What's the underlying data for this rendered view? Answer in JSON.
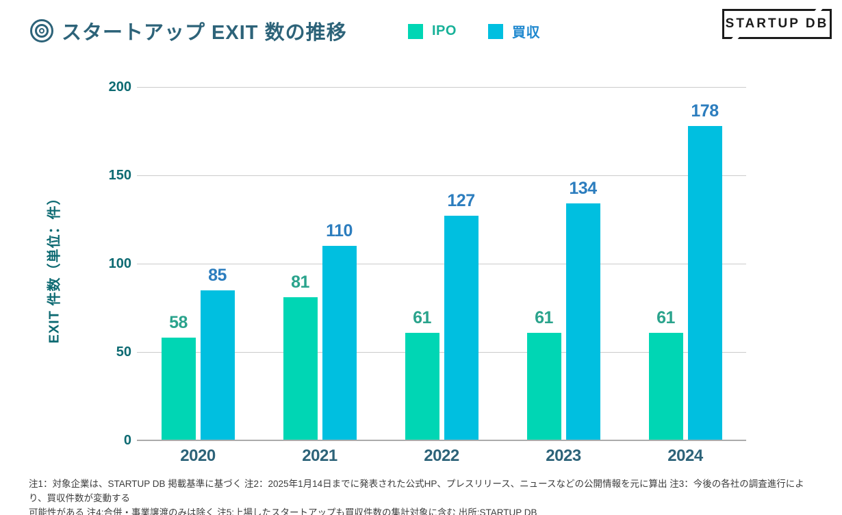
{
  "header": {
    "title": "スタートアップ EXIT 数の推移",
    "logo_text": "STARTUP DB"
  },
  "legend": [
    {
      "label": "IPO",
      "swatch_color": "#00d6b4",
      "text_color": "#17b198"
    },
    {
      "label": "買収",
      "swatch_color": "#00bfe0",
      "text_color": "#1f88cf"
    }
  ],
  "chart_data": {
    "type": "bar",
    "title": "スタートアップ EXIT 数の推移",
    "categories": [
      "2020",
      "2021",
      "2022",
      "2023",
      "2024"
    ],
    "series": [
      {
        "name": "IPO",
        "color": "#00d6b4",
        "label_color": "#2aa38c",
        "values": [
          58,
          81,
          61,
          61,
          61
        ]
      },
      {
        "name": "買収",
        "color": "#00bfe0",
        "label_color": "#2c7dbe",
        "values": [
          85,
          110,
          127,
          134,
          178
        ]
      }
    ],
    "xlabel": "",
    "ylabel": "EXIT 件数（単位：件）",
    "yticks": [
      0,
      50,
      100,
      150,
      200
    ],
    "ylim": [
      0,
      200
    ],
    "grid": true,
    "legend_position": "top"
  },
  "colors": {
    "title_text": "#2d6379",
    "axis_text": "#0d6a72",
    "gridline": "#cbcbcb",
    "baseline": "#ababab"
  },
  "footer": {
    "lines": [
      "注1：対象企業は、STARTUP DB 掲載基準に基づく 注2：2025年1月14日までに発表された公式HP、プレスリリース、ニュースなどの公開情報を元に算出 注3：今後の各社の調査進行により、買収件数が変動する",
      "可能性がある 注4:合併・事業譲渡のみは除く 注5:上場したスタートアップも買収件数の集計対象に含む 出所:STARTUP DB"
    ]
  }
}
